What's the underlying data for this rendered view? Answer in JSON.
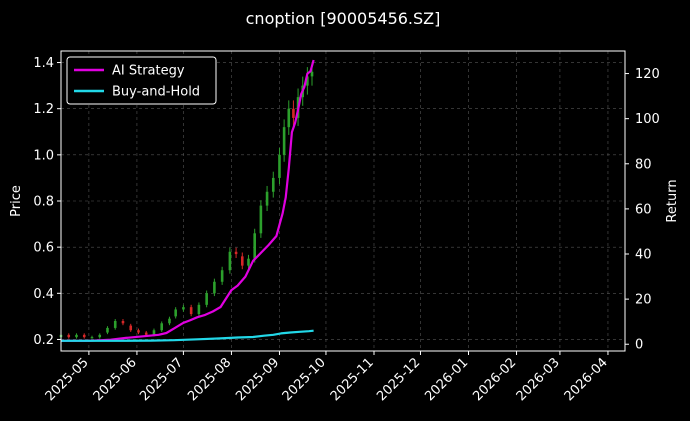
{
  "chart_data": {
    "type": "line",
    "title": "cnoption [90005456.SZ]",
    "xlabel": "",
    "ylabel_left": "Price",
    "ylabel_right": "Return",
    "grid": true,
    "legend_position": "top-left",
    "background": "#000000",
    "x_range": [
      "2025-04-13",
      "2026-04-12"
    ],
    "y_left_range": [
      0.15,
      1.45
    ],
    "y_right_range": [
      -3,
      130
    ],
    "x_ticks": [
      "2025-05",
      "2025-06",
      "2025-07",
      "2025-08",
      "2025-09",
      "2025-10",
      "2025-11",
      "2025-12",
      "2026-01",
      "2026-02",
      "2026-03",
      "2026-04"
    ],
    "y_left_ticks": [
      "0.2",
      "0.4",
      "0.6",
      "0.8",
      "1.0",
      "1.2",
      "1.4"
    ],
    "y_right_ticks": [
      "0",
      "20",
      "40",
      "60",
      "80",
      "100",
      "120"
    ],
    "colors": {
      "up": "#2ca02c",
      "down": "#d62728",
      "grid": "#555555",
      "axis": "#ffffff"
    },
    "series": [
      {
        "name": "AI Strategy",
        "axis": "right",
        "color": "#e000e0",
        "points": [
          [
            "2025-04-13",
            1.5
          ],
          [
            "2025-05-01",
            1.5
          ],
          [
            "2025-05-15",
            2.0
          ],
          [
            "2025-05-25",
            2.8
          ],
          [
            "2025-06-05",
            3.5
          ],
          [
            "2025-06-15",
            4.2
          ],
          [
            "2025-06-20",
            5.0
          ],
          [
            "2025-06-25",
            7.0
          ],
          [
            "2025-07-01",
            9.5
          ],
          [
            "2025-07-05",
            10.5
          ],
          [
            "2025-07-10",
            12.0
          ],
          [
            "2025-07-15",
            13.0
          ],
          [
            "2025-07-20",
            14.5
          ],
          [
            "2025-07-25",
            16.5
          ],
          [
            "2025-08-01",
            24.0
          ],
          [
            "2025-08-05",
            26.0
          ],
          [
            "2025-08-10",
            30.0
          ],
          [
            "2025-08-15",
            37.0
          ],
          [
            "2025-08-20",
            40.5
          ],
          [
            "2025-08-25",
            44.0
          ],
          [
            "2025-08-30",
            48.0
          ],
          [
            "2025-09-01",
            53.0
          ],
          [
            "2025-09-03",
            58.0
          ],
          [
            "2025-09-05",
            65.0
          ],
          [
            "2025-09-07",
            78.0
          ],
          [
            "2025-09-09",
            94.0
          ],
          [
            "2025-09-11",
            98.0
          ],
          [
            "2025-09-13",
            104.0
          ],
          [
            "2025-09-15",
            111.0
          ],
          [
            "2025-09-17",
            114.0
          ],
          [
            "2025-09-19",
            120.0
          ],
          [
            "2025-09-21",
            121.0
          ],
          [
            "2025-09-23",
            126.0
          ]
        ]
      },
      {
        "name": "Buy-and-Hold",
        "axis": "right",
        "color": "#22d8e8",
        "points": [
          [
            "2025-04-13",
            1.5
          ],
          [
            "2025-05-01",
            1.5
          ],
          [
            "2025-05-20",
            1.5
          ],
          [
            "2025-06-10",
            1.6
          ],
          [
            "2025-06-25",
            1.8
          ],
          [
            "2025-07-10",
            2.2
          ],
          [
            "2025-07-25",
            2.6
          ],
          [
            "2025-08-05",
            3.0
          ],
          [
            "2025-08-15",
            3.2
          ],
          [
            "2025-08-22",
            3.8
          ],
          [
            "2025-08-28",
            4.2
          ],
          [
            "2025-09-02",
            4.8
          ],
          [
            "2025-09-08",
            5.2
          ],
          [
            "2025-09-14",
            5.5
          ],
          [
            "2025-09-20",
            5.8
          ],
          [
            "2025-09-23",
            6.0
          ]
        ]
      }
    ],
    "price_candles": {
      "axis": "left",
      "description_free": true,
      "points": [
        [
          "2025-04-13",
          0.21,
          0.22
        ],
        [
          "2025-04-18",
          0.22,
          0.21
        ],
        [
          "2025-04-23",
          0.21,
          0.22
        ],
        [
          "2025-04-28",
          0.22,
          0.21
        ],
        [
          "2025-05-03",
          0.21,
          0.21
        ],
        [
          "2025-05-08",
          0.21,
          0.22
        ],
        [
          "2025-05-13",
          0.23,
          0.25
        ],
        [
          "2025-05-18",
          0.25,
          0.28
        ],
        [
          "2025-05-23",
          0.28,
          0.27
        ],
        [
          "2025-05-28",
          0.26,
          0.24
        ],
        [
          "2025-06-02",
          0.24,
          0.23
        ],
        [
          "2025-06-07",
          0.23,
          0.22
        ],
        [
          "2025-06-12",
          0.22,
          0.24
        ],
        [
          "2025-06-17",
          0.24,
          0.27
        ],
        [
          "2025-06-22",
          0.27,
          0.29
        ],
        [
          "2025-06-26",
          0.3,
          0.33
        ],
        [
          "2025-07-01",
          0.33,
          0.34
        ],
        [
          "2025-07-06",
          0.34,
          0.31
        ],
        [
          "2025-07-11",
          0.31,
          0.35
        ],
        [
          "2025-07-16",
          0.35,
          0.4
        ],
        [
          "2025-07-21",
          0.4,
          0.45
        ],
        [
          "2025-07-26",
          0.45,
          0.5
        ],
        [
          "2025-07-31",
          0.5,
          0.58
        ],
        [
          "2025-08-04",
          0.58,
          0.57
        ],
        [
          "2025-08-08",
          0.56,
          0.52
        ],
        [
          "2025-08-12",
          0.52,
          0.55
        ],
        [
          "2025-08-16",
          0.55,
          0.66
        ],
        [
          "2025-08-20",
          0.66,
          0.78
        ],
        [
          "2025-08-24",
          0.78,
          0.84
        ],
        [
          "2025-08-28",
          0.84,
          0.9
        ],
        [
          "2025-09-01",
          0.9,
          1.0
        ],
        [
          "2025-09-04",
          1.0,
          1.12
        ],
        [
          "2025-09-07",
          1.12,
          1.2
        ],
        [
          "2025-09-10",
          1.2,
          1.16
        ],
        [
          "2025-09-13",
          1.16,
          1.25
        ],
        [
          "2025-09-16",
          1.25,
          1.3
        ],
        [
          "2025-09-19",
          1.3,
          1.34
        ],
        [
          "2025-09-22",
          1.34,
          1.36
        ]
      ]
    }
  }
}
